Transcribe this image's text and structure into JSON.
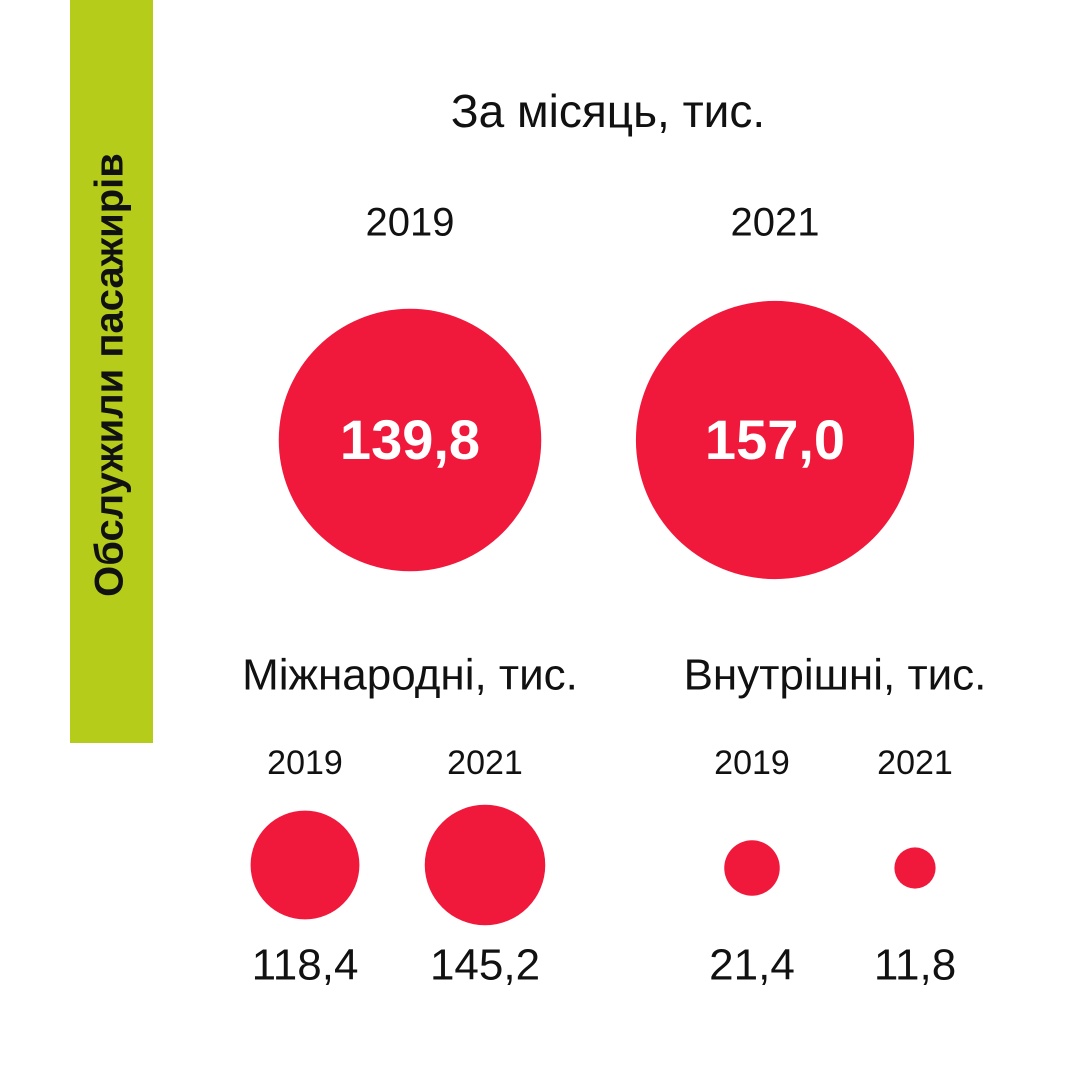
{
  "side_title": "Обслужили пасажирів",
  "chart_data": [
    {
      "type": "bubble",
      "title": "За місяць, тис.",
      "categories": [
        "2019",
        "2021"
      ],
      "values": [
        139.8,
        157.0
      ],
      "value_labels": [
        "139,8",
        "157,0"
      ],
      "color": "#f0193c",
      "label_position": "inside"
    },
    {
      "type": "bubble",
      "title": "Міжнародні, тис.",
      "categories": [
        "2019",
        "2021"
      ],
      "values": [
        118.4,
        145.2
      ],
      "value_labels": [
        "118,4",
        "145,2"
      ],
      "color": "#f0193c",
      "label_position": "below"
    },
    {
      "type": "bubble",
      "title": "Внутрішні, тис.",
      "categories": [
        "2019",
        "2021"
      ],
      "values": [
        21.4,
        11.8
      ],
      "value_labels": [
        "21,4",
        "11,8"
      ],
      "color": "#f0193c",
      "label_position": "below"
    }
  ]
}
